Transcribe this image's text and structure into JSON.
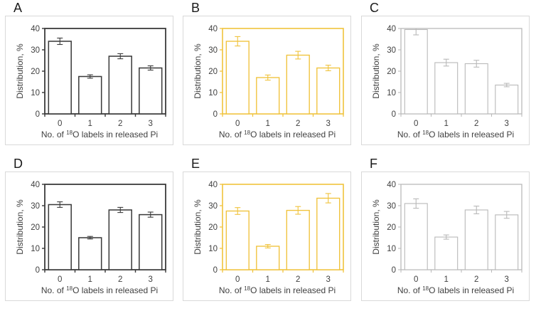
{
  "figure": {
    "panels": [
      {
        "letter": "A"
      },
      {
        "letter": "B"
      },
      {
        "letter": "C"
      },
      {
        "letter": "D"
      },
      {
        "letter": "E"
      },
      {
        "letter": "F"
      }
    ]
  },
  "style": {
    "text_color": "#3f3f3f",
    "panel_border_color": "#d9d9d9",
    "bar_fill": "#ffffff",
    "background": "#ffffff",
    "theme_dark": "#3b3b3b",
    "theme_yellow": "#f0c33c",
    "theme_gray": "#b9b9b9"
  },
  "chart_data": [
    {
      "type": "bar",
      "panel": "A",
      "title": "",
      "categories": [
        "0",
        "1",
        "2",
        "3"
      ],
      "values": [
        34,
        17.5,
        27,
        21.5
      ],
      "errors": [
        1.5,
        0.8,
        1.2,
        1.0
      ],
      "xlabel": "No. of ¹⁸O labels in released Pi",
      "xlabel_parts": {
        "prefix": "No. of ",
        "superscript": "18",
        "suffix": "O labels in released Pi"
      },
      "ylabel": "Distribution, %",
      "ylim": [
        0,
        40
      ],
      "yticks": [
        0,
        10,
        20,
        30,
        40
      ],
      "grid": false,
      "legend": "none",
      "axis_color": "#3b3b3b",
      "stroke_width": 1.8
    },
    {
      "type": "bar",
      "panel": "B",
      "title": "",
      "categories": [
        "0",
        "1",
        "2",
        "3"
      ],
      "values": [
        34,
        17,
        27.5,
        21.5
      ],
      "errors": [
        2.2,
        1.2,
        1.8,
        1.3
      ],
      "xlabel": "No. of ¹⁸O labels in released Pi",
      "xlabel_parts": {
        "prefix": "No. of ",
        "superscript": "18",
        "suffix": "O labels in released Pi"
      },
      "ylabel": "Distribution, %",
      "ylim": [
        0,
        40
      ],
      "yticks": [
        0,
        10,
        20,
        30,
        40
      ],
      "grid": false,
      "legend": "none",
      "axis_color": "#f0c33c",
      "stroke_width": 1.6
    },
    {
      "type": "bar",
      "panel": "C",
      "title": "",
      "categories": [
        "0",
        "1",
        "2",
        "3"
      ],
      "values": [
        39.5,
        24,
        23.5,
        13.5
      ],
      "errors": [
        2.5,
        1.6,
        1.6,
        0.8
      ],
      "xlabel": "No. of ¹⁸O labels in released Pi",
      "xlabel_parts": {
        "prefix": "No. of ",
        "superscript": "18",
        "suffix": "O labels in released Pi"
      },
      "ylabel": "Distribution, %",
      "ylim": [
        0,
        40
      ],
      "yticks": [
        0,
        10,
        20,
        30,
        40
      ],
      "grid": false,
      "legend": "none",
      "axis_color": "#b9b9b9",
      "stroke_width": 1.3
    },
    {
      "type": "bar",
      "panel": "D",
      "title": "",
      "categories": [
        "0",
        "1",
        "2",
        "3"
      ],
      "values": [
        30.5,
        15,
        28,
        25.8
      ],
      "errors": [
        1.3,
        0.6,
        1.2,
        1.2
      ],
      "xlabel": "No. of ¹⁸O labels in released Pi",
      "xlabel_parts": {
        "prefix": "No. of ",
        "superscript": "18",
        "suffix": "O labels in released Pi"
      },
      "ylabel": "Distribution, %",
      "ylim": [
        0,
        40
      ],
      "yticks": [
        0,
        10,
        20,
        30,
        40
      ],
      "grid": false,
      "legend": "none",
      "axis_color": "#3b3b3b",
      "stroke_width": 1.8
    },
    {
      "type": "bar",
      "panel": "E",
      "title": "",
      "categories": [
        "0",
        "1",
        "2",
        "3"
      ],
      "values": [
        27.5,
        11,
        27.8,
        33.5
      ],
      "errors": [
        1.6,
        0.8,
        1.8,
        2.2
      ],
      "xlabel": "No. of ¹⁸O labels in released Pi",
      "xlabel_parts": {
        "prefix": "No. of ",
        "superscript": "18",
        "suffix": "O labels in released Pi"
      },
      "ylabel": "Distribution, %",
      "ylim": [
        0,
        40
      ],
      "yticks": [
        0,
        10,
        20,
        30,
        40
      ],
      "grid": false,
      "legend": "none",
      "axis_color": "#f0c33c",
      "stroke_width": 1.6
    },
    {
      "type": "bar",
      "panel": "F",
      "title": "",
      "categories": [
        "0",
        "1",
        "2",
        "3"
      ],
      "values": [
        31,
        15.3,
        28,
        25.7
      ],
      "errors": [
        2.2,
        1.0,
        1.8,
        1.6
      ],
      "xlabel": "No. of ¹⁸O labels in released Pi",
      "xlabel_parts": {
        "prefix": "No. of ",
        "superscript": "18",
        "suffix": "O labels in released Pi"
      },
      "ylabel": "Distribution, %",
      "ylim": [
        0,
        40
      ],
      "yticks": [
        0,
        10,
        20,
        30,
        40
      ],
      "grid": false,
      "legend": "none",
      "axis_color": "#b9b9b9",
      "stroke_width": 1.3
    }
  ]
}
